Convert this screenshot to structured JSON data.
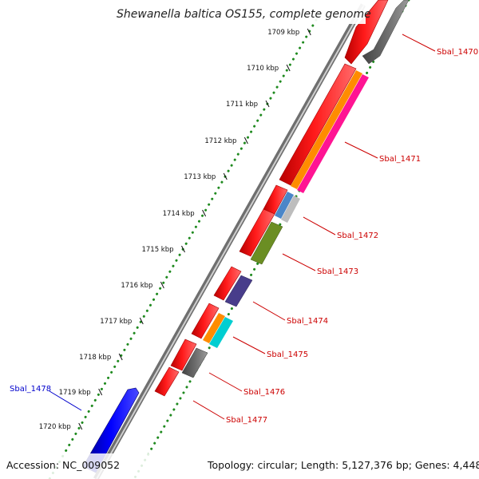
{
  "title": "Shewanella baltica OS155, complete genome",
  "footer": {
    "accession": "Accession: NC_009052",
    "summary": "Topology: circular; Length: 5,127,376 bp; Genes: 4,448"
  },
  "ticks": [
    {
      "label": "1709 kbp",
      "offset": 40
    },
    {
      "label": "1710 kbp",
      "offset": 85
    },
    {
      "label": "1711 kbp",
      "offset": 130
    },
    {
      "label": "1712 kbp",
      "offset": 176
    },
    {
      "label": "1713 kbp",
      "offset": 221
    },
    {
      "label": "1714 kbp",
      "offset": 267
    },
    {
      "label": "1715 kbp",
      "offset": 312
    },
    {
      "label": "1716 kbp",
      "offset": 357
    },
    {
      "label": "1717 kbp",
      "offset": 402
    },
    {
      "label": "1718 kbp",
      "offset": 447
    },
    {
      "label": "1719 kbp",
      "offset": 491
    },
    {
      "label": "1720 kbp",
      "offset": 534
    }
  ],
  "genes": [
    {
      "label": "Sbal_1470",
      "color": "red"
    },
    {
      "label": "Sbal_1471",
      "color": "red"
    },
    {
      "label": "Sbal_1472",
      "color": "red"
    },
    {
      "label": "Sbal_1473",
      "color": "red"
    },
    {
      "label": "Sbal_1474",
      "color": "red"
    },
    {
      "label": "Sbal_1475",
      "color": "red"
    },
    {
      "label": "Sbal_1476",
      "color": "red"
    },
    {
      "label": "Sbal_1477",
      "color": "red"
    },
    {
      "label": "Sbal_1478",
      "color": "blue"
    }
  ],
  "colors": {
    "cds": "#ff0000",
    "cds_blue": "#0000ff",
    "backbone": "#8c8c8c",
    "gc_dots": "#1f8a1f",
    "label_red": "#cc0000",
    "label_blue": "#0000cc"
  }
}
